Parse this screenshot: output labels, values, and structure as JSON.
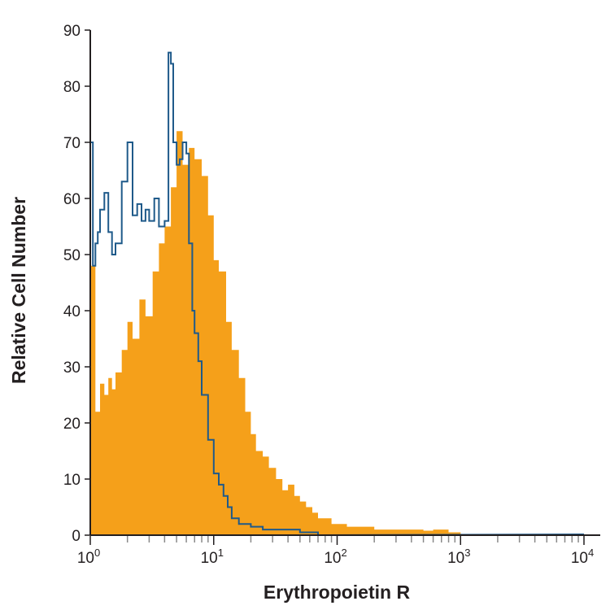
{
  "chart_data": {
    "type": "histogram",
    "xlabel": "Erythropoietin R",
    "ylabel": "Relative Cell Number",
    "x_scale": "log",
    "xlim": [
      1,
      10000
    ],
    "ylim": [
      0,
      90
    ],
    "x_ticks": [
      {
        "base": "10",
        "exp": "0",
        "value": 1
      },
      {
        "base": "10",
        "exp": "1",
        "value": 10
      },
      {
        "base": "10",
        "exp": "2",
        "value": 100
      },
      {
        "base": "10",
        "exp": "3",
        "value": 1000
      },
      {
        "base": "10",
        "exp": "4",
        "value": 10000
      }
    ],
    "y_ticks": [
      0,
      10,
      20,
      30,
      40,
      50,
      60,
      70,
      80,
      90
    ],
    "grid": false,
    "colors": {
      "filled": "#f5a01a",
      "outline": "#1f5a8a",
      "axis": "#231f20"
    },
    "series": [
      {
        "style": "filled",
        "x": [
          1.0,
          1.1,
          1.2,
          1.3,
          1.4,
          1.5,
          1.6,
          1.8,
          2.0,
          2.2,
          2.5,
          2.8,
          3.2,
          3.6,
          4.0,
          4.5,
          5.0,
          5.6,
          6.3,
          7.0,
          8.0,
          9.0,
          10,
          11,
          12.6,
          14,
          16,
          18,
          20,
          22,
          25,
          28,
          32,
          36,
          40,
          45,
          50,
          56,
          63,
          70,
          80,
          90,
          100,
          120,
          150,
          200,
          250,
          300,
          400,
          500,
          600,
          700,
          800,
          1000
        ],
        "y": [
          48,
          22,
          27,
          25,
          28,
          26,
          29,
          33,
          38,
          35,
          42,
          39,
          47,
          52,
          55,
          62,
          72,
          66,
          69,
          67,
          64,
          57,
          49,
          47,
          38,
          33,
          28,
          22,
          18,
          15,
          14,
          12,
          10,
          8,
          9,
          7,
          6,
          5,
          4,
          3,
          3,
          2,
          2,
          1.5,
          1.5,
          1,
          1,
          1,
          1,
          0.8,
          1,
          1,
          0.5,
          0
        ]
      },
      {
        "style": "outline",
        "x": [
          1.0,
          1.05,
          1.1,
          1.15,
          1.2,
          1.3,
          1.4,
          1.5,
          1.6,
          1.8,
          2.0,
          2.2,
          2.4,
          2.6,
          2.8,
          3.0,
          3.3,
          3.6,
          4.0,
          4.3,
          4.5,
          4.7,
          5.0,
          5.3,
          5.6,
          6.0,
          6.3,
          6.7,
          7.0,
          7.5,
          8.0,
          9.0,
          10,
          11,
          12,
          13,
          14,
          16,
          18,
          20,
          25,
          30,
          40,
          50,
          60,
          70
        ],
        "y": [
          70,
          48,
          52,
          54,
          58,
          61,
          54,
          50,
          52,
          63,
          70,
          57,
          59,
          56,
          58,
          56,
          60,
          55,
          56,
          86,
          84,
          70,
          66,
          67,
          70,
          68,
          52,
          40,
          36,
          31,
          25,
          17,
          11,
          9,
          7,
          5,
          3,
          2,
          2,
          1.5,
          1,
          1,
          1,
          0.5,
          0.5,
          0
        ]
      }
    ]
  }
}
